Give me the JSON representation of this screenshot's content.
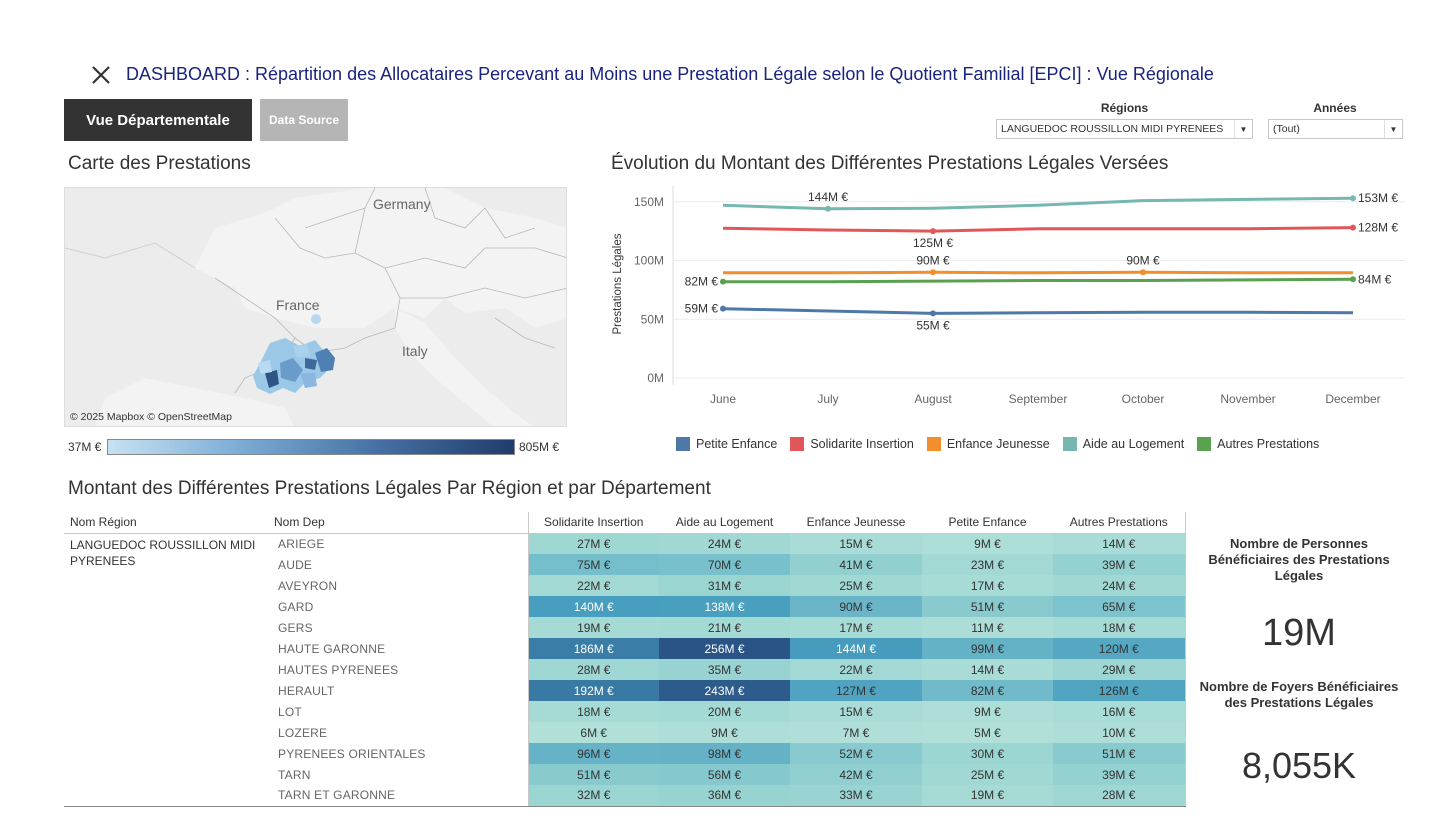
{
  "header": {
    "title": "DASHBOARD : Répartition des Allocataires Percevant au Moins une Prestation Légale selon le Quotient Familial [EPCI] : Vue Régionale",
    "close_icon": "close-icon"
  },
  "buttons": {
    "vue_departementale": "Vue Départementale",
    "data_source": "Data Source"
  },
  "filters": {
    "regions": {
      "label": "Régions",
      "value": "LANGUEDOC ROUSSILLON MIDI PYRENEES"
    },
    "annees": {
      "label": "Années",
      "value": "(Tout)"
    }
  },
  "map": {
    "title": "Carte des Prestations",
    "labels": {
      "germany": "Germany",
      "france": "France",
      "italy": "Italy"
    },
    "credit": "© 2025 Mapbox © OpenStreetMap",
    "legend_min": "37M €",
    "legend_max": "805M €"
  },
  "line_chart": {
    "title": "Évolution du Montant des Différentes Prestations Légales Versées"
  },
  "chart_data": {
    "type": "line",
    "title": "Évolution du Montant des Différentes Prestations Légales Versées",
    "ylabel": "Prestations Légales",
    "xlabel": "",
    "x": [
      "June",
      "July",
      "August",
      "September",
      "October",
      "November",
      "December"
    ],
    "y_ticks": [
      "0M",
      "50M",
      "100M",
      "150M"
    ],
    "ylim": [
      0,
      160
    ],
    "grid": true,
    "legend_position": "bottom",
    "series": [
      {
        "name": "Petite Enfance",
        "color": "#4e79a7",
        "values": [
          59,
          57,
          55,
          55.5,
          56,
          56,
          55.5
        ]
      },
      {
        "name": "Solidarite Insertion",
        "color": "#e15759",
        "values": [
          127.5,
          126,
          125,
          127,
          127,
          127,
          128
        ]
      },
      {
        "name": "Enfance Jeunesse",
        "color": "#f28e2b",
        "values": [
          89.5,
          89.5,
          90,
          89.5,
          90,
          89.5,
          89.5
        ]
      },
      {
        "name": "Aide au Logement",
        "color": "#76b7b2",
        "values": [
          147,
          144,
          144.5,
          147,
          151,
          152,
          153
        ]
      },
      {
        "name": "Autres Prestations",
        "color": "#59a14f",
        "values": [
          82,
          82,
          82.5,
          83,
          83,
          83.5,
          84
        ]
      }
    ],
    "annotations": [
      {
        "series": 4,
        "index": 0,
        "text": "82M €",
        "pos": "left"
      },
      {
        "series": 0,
        "index": 0,
        "text": "59M €",
        "pos": "left"
      },
      {
        "series": 3,
        "index": 1,
        "text": "144M €",
        "pos": "above"
      },
      {
        "series": 1,
        "index": 2,
        "text": "125M €",
        "pos": "below"
      },
      {
        "series": 2,
        "index": 2,
        "text": "90M €",
        "pos": "above"
      },
      {
        "series": 0,
        "index": 2,
        "text": "55M €",
        "pos": "below"
      },
      {
        "series": 2,
        "index": 4,
        "text": "90M €",
        "pos": "above"
      },
      {
        "series": 3,
        "index": 6,
        "text": "153M €",
        "pos": "right"
      },
      {
        "series": 1,
        "index": 6,
        "text": "128M €",
        "pos": "right"
      },
      {
        "series": 4,
        "index": 6,
        "text": "84M €",
        "pos": "right"
      }
    ]
  },
  "table": {
    "title": "Montant des Différentes Prestations Légales Par Région et par Département",
    "headers": [
      "Nom Région",
      "Nom Dep",
      "Solidarite Insertion",
      "Aide au Logement",
      "Enfance Jeunesse",
      "Petite Enfance",
      "Autres Prestations"
    ],
    "region": "LANGUEDOC ROUSSILLON MIDI PYRENEES",
    "rows": [
      {
        "dep": "ARIEGE",
        "values": [
          "27M €",
          "24M €",
          "15M €",
          "9M €",
          "14M €"
        ],
        "nums": [
          27,
          24,
          15,
          9,
          14
        ]
      },
      {
        "dep": "AUDE",
        "values": [
          "75M €",
          "70M €",
          "41M €",
          "23M €",
          "39M €"
        ],
        "nums": [
          75,
          70,
          41,
          23,
          39
        ]
      },
      {
        "dep": "AVEYRON",
        "values": [
          "22M €",
          "31M €",
          "25M €",
          "17M €",
          "24M €"
        ],
        "nums": [
          22,
          31,
          25,
          17,
          24
        ]
      },
      {
        "dep": "GARD",
        "values": [
          "140M €",
          "138M €",
          "90M €",
          "51M €",
          "65M €"
        ],
        "nums": [
          140,
          138,
          90,
          51,
          65
        ]
      },
      {
        "dep": "GERS",
        "values": [
          "19M €",
          "21M €",
          "17M €",
          "11M €",
          "18M €"
        ],
        "nums": [
          19,
          21,
          17,
          11,
          18
        ]
      },
      {
        "dep": "HAUTE GARONNE",
        "values": [
          "186M €",
          "256M €",
          "144M €",
          "99M €",
          "120M €"
        ],
        "nums": [
          186,
          256,
          144,
          99,
          120
        ]
      },
      {
        "dep": "HAUTES PYRENEES",
        "values": [
          "28M €",
          "35M €",
          "22M €",
          "14M €",
          "29M €"
        ],
        "nums": [
          28,
          35,
          22,
          14,
          29
        ]
      },
      {
        "dep": "HERAULT",
        "values": [
          "192M €",
          "243M €",
          "127M €",
          "82M €",
          "126M €"
        ],
        "nums": [
          192,
          243,
          127,
          82,
          126
        ]
      },
      {
        "dep": "LOT",
        "values": [
          "18M €",
          "20M €",
          "15M €",
          "9M €",
          "16M €"
        ],
        "nums": [
          18,
          20,
          15,
          9,
          16
        ]
      },
      {
        "dep": "LOZERE",
        "values": [
          "6M €",
          "9M €",
          "7M €",
          "5M €",
          "10M €"
        ],
        "nums": [
          6,
          9,
          7,
          5,
          10
        ]
      },
      {
        "dep": "PYRENEES ORIENTALES",
        "values": [
          "96M €",
          "98M €",
          "52M €",
          "30M €",
          "51M €"
        ],
        "nums": [
          96,
          98,
          52,
          30,
          51
        ]
      },
      {
        "dep": "TARN",
        "values": [
          "51M €",
          "56M €",
          "42M €",
          "25M €",
          "39M €"
        ],
        "nums": [
          51,
          56,
          42,
          25,
          39
        ]
      },
      {
        "dep": "TARN ET GARONNE",
        "values": [
          "32M €",
          "36M €",
          "33M €",
          "19M €",
          "28M €"
        ],
        "nums": [
          32,
          36,
          33,
          19,
          28
        ]
      }
    ]
  },
  "kpis": {
    "personnes_label": "Nombre de Personnes Bénéficiaires des Prestations Légales",
    "personnes_value": "19M",
    "foyers_label": "Nombre de Foyers Bénéficiaires des Prestations Légales",
    "foyers_value": "8,055K"
  }
}
